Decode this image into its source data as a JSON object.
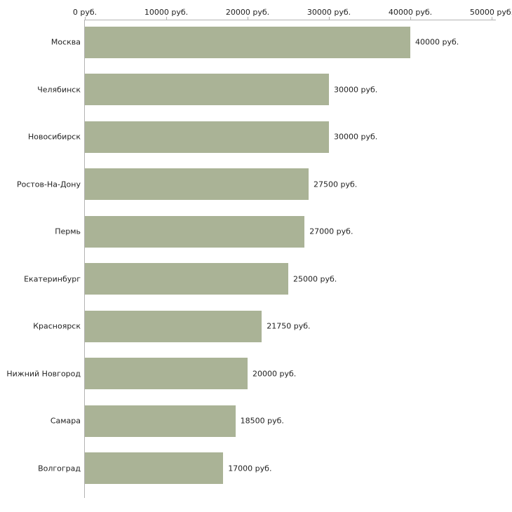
{
  "chart_data": {
    "type": "bar",
    "orientation": "horizontal",
    "title": "",
    "xlabel": "",
    "ylabel": "",
    "categories": [
      "Москва",
      "Челябинск",
      "Новосибирск",
      "Ростов-На-Дону",
      "Пермь",
      "Екатеринбург",
      "Красноярск",
      "Нижний Новгород",
      "Самара",
      "Волгоград"
    ],
    "values": [
      40000,
      30000,
      30000,
      27500,
      27000,
      25000,
      21750,
      20000,
      18500,
      17000
    ],
    "value_labels": [
      "40000 руб.",
      "30000 руб.",
      "30000 руб.",
      "27500 руб.",
      "27000 руб.",
      "25000 руб.",
      "21750 руб.",
      "20000 руб.",
      "18500 руб.",
      "17000 руб."
    ],
    "x_ticks": [
      0,
      10000,
      20000,
      30000,
      40000,
      50000
    ],
    "x_tick_labels": [
      "0 руб.",
      "10000 руб.",
      "20000 руб.",
      "30000 руб.",
      "40000 руб.",
      "50000 руб."
    ],
    "xlim": [
      0,
      50000
    ],
    "grid": false,
    "legend": false,
    "axis_position": "top",
    "bar_color": "#aab396",
    "axis_color": "#b3b3b3",
    "text_color": "#222222",
    "background_color": "#ffffff"
  }
}
